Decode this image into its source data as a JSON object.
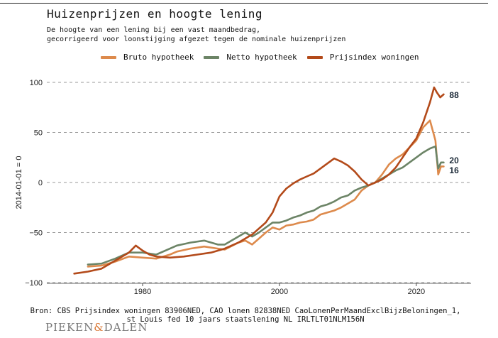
{
  "header": {
    "title": "Huizenprijzen en hoogte lening",
    "subtitle": "De hoogte van een lening bij een vast maandbedrag,\ngecorrigeerd voor loonstijging afgezet tegen de nominale huizenprijzen"
  },
  "footer": {
    "source": "Bron: CBS Prijsindex woningen 83906NED, CAO lonen 82838NED CaoLonenPerMaandExclBijzBeloningen_1,\nst Louis fed 10 jaars staatslening NL IRLTLT01NLM156N",
    "logo_left": "PIEKEN",
    "logo_amp": "&",
    "logo_right": "DALEN"
  },
  "chart_data": {
    "type": "line",
    "title": "Huizenprijzen en hoogte lening",
    "xlabel": "",
    "ylabel": "2014-01-01 = 0",
    "xlim": [
      1966,
      2028
    ],
    "ylim": [
      -100,
      100
    ],
    "xticks": [
      1980,
      2000,
      2020
    ],
    "yticks": [
      -100,
      -50,
      0,
      50,
      100
    ],
    "grid": "horizontal dashed",
    "legend": "top",
    "series": [
      {
        "name": "Bruto hypotheek",
        "color": "#dd8a4c",
        "end_label": "16",
        "points": [
          [
            1972,
            -84
          ],
          [
            1974,
            -83
          ],
          [
            1976,
            -79
          ],
          [
            1978,
            -74
          ],
          [
            1980,
            -75
          ],
          [
            1982,
            -76
          ],
          [
            1984,
            -72
          ],
          [
            1985,
            -69
          ],
          [
            1987,
            -66
          ],
          [
            1989,
            -64
          ],
          [
            1991,
            -66
          ],
          [
            1992,
            -67
          ],
          [
            1994,
            -60
          ],
          [
            1995,
            -58
          ],
          [
            1996,
            -62
          ],
          [
            1997,
            -56
          ],
          [
            1998,
            -50
          ],
          [
            1999,
            -45
          ],
          [
            2000,
            -47
          ],
          [
            2001,
            -43
          ],
          [
            2002,
            -42
          ],
          [
            2003,
            -40
          ],
          [
            2004,
            -39
          ],
          [
            2005,
            -37
          ],
          [
            2006,
            -32
          ],
          [
            2007,
            -30
          ],
          [
            2008,
            -28
          ],
          [
            2009,
            -25
          ],
          [
            2010,
            -21
          ],
          [
            2011,
            -17
          ],
          [
            2012,
            -8
          ],
          [
            2013,
            -3
          ],
          [
            2014,
            0
          ],
          [
            2015,
            8
          ],
          [
            2016,
            18
          ],
          [
            2017,
            24
          ],
          [
            2018,
            28
          ],
          [
            2019,
            35
          ],
          [
            2020,
            42
          ],
          [
            2021,
            55
          ],
          [
            2022,
            62
          ],
          [
            2022.8,
            42
          ],
          [
            2023.2,
            8
          ],
          [
            2023.6,
            16
          ],
          [
            2024,
            16
          ]
        ]
      },
      {
        "name": "Netto hypotheek",
        "color": "#6c8466",
        "end_label": "20",
        "points": [
          [
            1972,
            -82
          ],
          [
            1974,
            -81
          ],
          [
            1976,
            -76
          ],
          [
            1978,
            -70
          ],
          [
            1980,
            -70
          ],
          [
            1982,
            -72
          ],
          [
            1984,
            -66
          ],
          [
            1985,
            -63
          ],
          [
            1987,
            -60
          ],
          [
            1989,
            -58
          ],
          [
            1991,
            -62
          ],
          [
            1992,
            -62
          ],
          [
            1994,
            -54
          ],
          [
            1995,
            -50
          ],
          [
            1996,
            -54
          ],
          [
            1997,
            -50
          ],
          [
            1998,
            -45
          ],
          [
            1999,
            -40
          ],
          [
            2000,
            -40
          ],
          [
            2001,
            -38
          ],
          [
            2002,
            -35
          ],
          [
            2003,
            -33
          ],
          [
            2004,
            -30
          ],
          [
            2005,
            -28
          ],
          [
            2006,
            -24
          ],
          [
            2007,
            -22
          ],
          [
            2008,
            -19
          ],
          [
            2009,
            -15
          ],
          [
            2010,
            -13
          ],
          [
            2011,
            -8
          ],
          [
            2012,
            -5
          ],
          [
            2013,
            -3
          ],
          [
            2014,
            0
          ],
          [
            2015,
            4
          ],
          [
            2016,
            8
          ],
          [
            2017,
            12
          ],
          [
            2018,
            15
          ],
          [
            2019,
            20
          ],
          [
            2020,
            25
          ],
          [
            2021,
            30
          ],
          [
            2022,
            34
          ],
          [
            2022.8,
            36
          ],
          [
            2023.2,
            14
          ],
          [
            2023.6,
            20
          ],
          [
            2024,
            20
          ]
        ]
      },
      {
        "name": "Prijsindex woningen",
        "color": "#b34a1a",
        "end_label": "88",
        "points": [
          [
            1970,
            -91
          ],
          [
            1972,
            -89
          ],
          [
            1974,
            -86
          ],
          [
            1976,
            -78
          ],
          [
            1978,
            -70
          ],
          [
            1979,
            -63
          ],
          [
            1980,
            -68
          ],
          [
            1981,
            -72
          ],
          [
            1982,
            -74
          ],
          [
            1984,
            -75
          ],
          [
            1986,
            -74
          ],
          [
            1988,
            -72
          ],
          [
            1990,
            -70
          ],
          [
            1992,
            -66
          ],
          [
            1994,
            -60
          ],
          [
            1996,
            -52
          ],
          [
            1998,
            -40
          ],
          [
            1999,
            -30
          ],
          [
            2000,
            -14
          ],
          [
            2001,
            -6
          ],
          [
            2002,
            -1
          ],
          [
            2003,
            3
          ],
          [
            2004,
            6
          ],
          [
            2005,
            9
          ],
          [
            2006,
            14
          ],
          [
            2007,
            19
          ],
          [
            2008,
            24
          ],
          [
            2009,
            21
          ],
          [
            2010,
            17
          ],
          [
            2011,
            11
          ],
          [
            2012,
            3
          ],
          [
            2013,
            -3
          ],
          [
            2014,
            0
          ],
          [
            2015,
            3
          ],
          [
            2016,
            8
          ],
          [
            2017,
            15
          ],
          [
            2018,
            25
          ],
          [
            2019,
            35
          ],
          [
            2020,
            44
          ],
          [
            2021,
            60
          ],
          [
            2022,
            80
          ],
          [
            2022.6,
            95
          ],
          [
            2023,
            90
          ],
          [
            2023.5,
            85
          ],
          [
            2024,
            88
          ]
        ]
      }
    ]
  }
}
